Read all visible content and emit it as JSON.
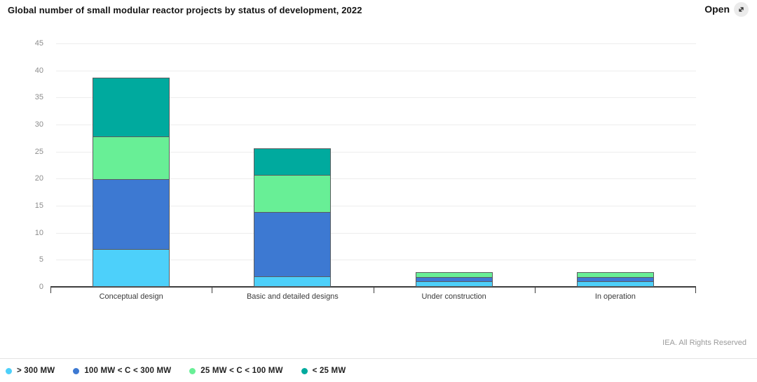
{
  "header": {
    "title": "Global number of small modular reactor projects by status of development, 2022",
    "open_label": "Open",
    "open_icon": "expand-arrow-icon"
  },
  "footer": {
    "credit": "IEA. All Rights Reserved"
  },
  "colors": {
    "grid": "#ededed",
    "axis": "#3d3d3d",
    "bar_stroke": "#5b5c5e"
  },
  "chart_data": {
    "type": "bar",
    "stacked": true,
    "title": "Global number of small modular reactor projects by status of development, 2022",
    "categories": [
      "Conceptual design",
      "Basic and detailed designs",
      "Under construction",
      "In operation"
    ],
    "series": [
      {
        "name": "> 300 MW",
        "color": "#4DD0FA",
        "values": [
          7,
          2,
          1,
          1
        ]
      },
      {
        "name": "100 MW < C < 300 MW",
        "color": "#3D79D2",
        "values": [
          13,
          12,
          1,
          1
        ]
      },
      {
        "name": "25 MW < C < 100 MW",
        "color": "#68EF96",
        "values": [
          8,
          7,
          1,
          1
        ]
      },
      {
        "name": "< 25 MW",
        "color": "#00AA9E",
        "values": [
          11,
          5,
          0,
          0
        ]
      }
    ],
    "totals": [
      39,
      26,
      3,
      3
    ],
    "xlabel": "",
    "ylabel": "",
    "ylim": [
      0,
      45
    ],
    "yticks": [
      0,
      5,
      10,
      15,
      20,
      25,
      30,
      35,
      40,
      45
    ],
    "grid": true,
    "legend_position": "bottom-left"
  }
}
